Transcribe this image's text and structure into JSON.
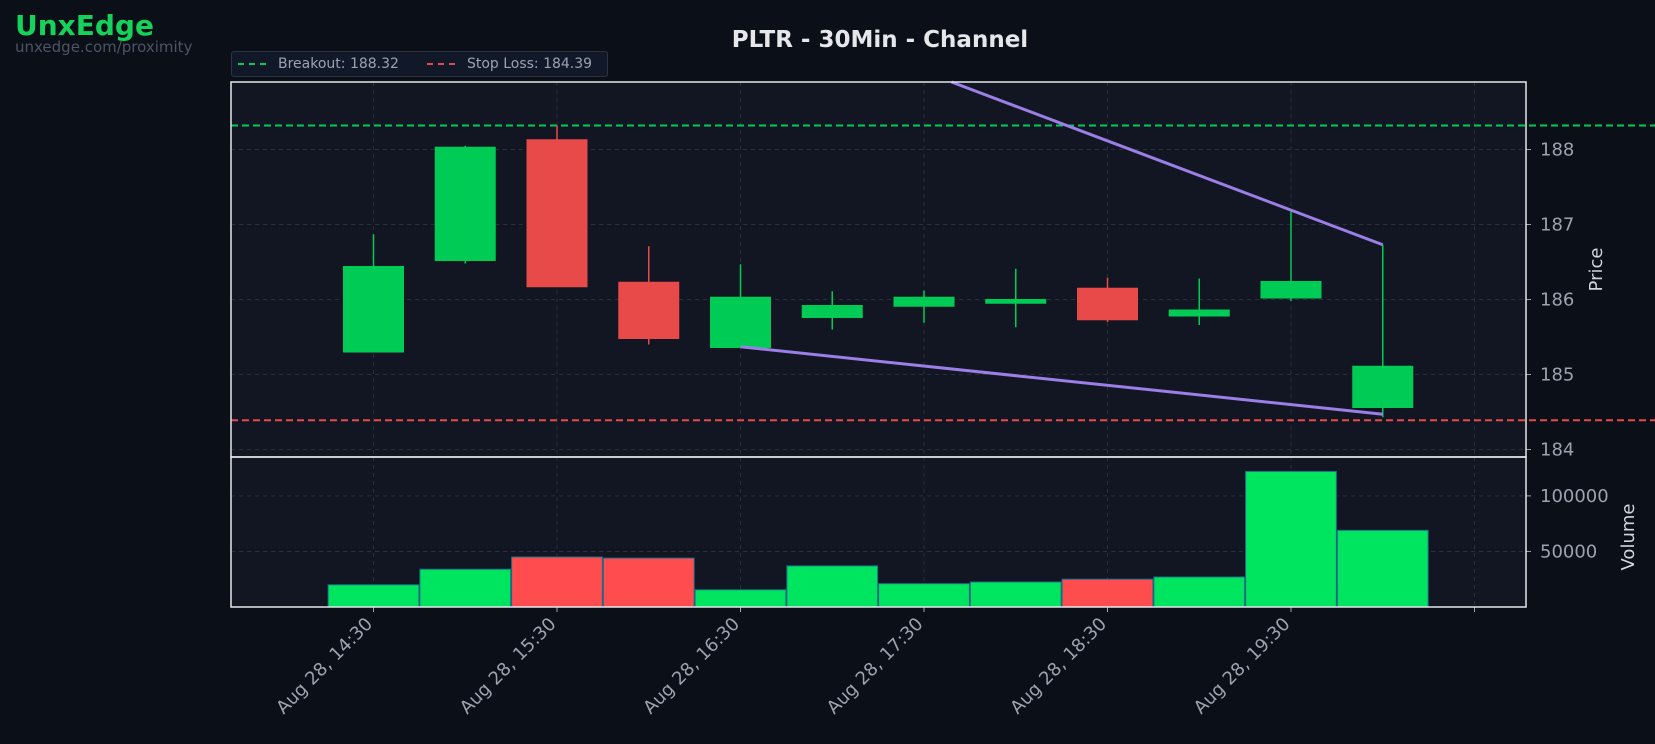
{
  "brand": {
    "name": "UnxEdge",
    "url": "unxedge.com/proximity"
  },
  "title": "PLTR - 30Min - Channel",
  "colors": {
    "background": "#0b0f17",
    "panel": "#121622",
    "up": "#00cc55",
    "up_volume": "#00e55f",
    "down": "#e84a4a",
    "down_volume": "#ff4d4f",
    "channel": "#9b7fe6",
    "breakout": "#00cc55",
    "stop_loss": "#e84a4a",
    "grid": "#2a2f3b",
    "axis_text": "#9ca3af",
    "frame": "#e5e7eb"
  },
  "legend": [
    {
      "label": "Breakout: 188.32",
      "color": "#00cc55",
      "level": 188.32
    },
    {
      "label": "Stop Loss: 184.39",
      "color": "#e84a4a",
      "level": 184.39
    }
  ],
  "chart_data": {
    "type": "candlestick",
    "title": "PLTR - 30Min - Channel",
    "interval": "30Min",
    "ylabel": "Price",
    "volume_label": "Volume",
    "price_ylim": [
      183.9,
      188.9
    ],
    "price_yticks": [
      184,
      185,
      186,
      187,
      188
    ],
    "volume_yticks": [
      50000,
      100000
    ],
    "volume_ylim": [
      0,
      135000
    ],
    "xtick_labels": [
      "Aug 28, 14:30",
      "Aug 28, 15:30",
      "Aug 28, 16:30",
      "Aug 28, 17:30",
      "Aug 28, 18:30",
      "Aug 28, 19:30"
    ],
    "grid": true,
    "legend_placement": "top-left",
    "candles": [
      {
        "time": "Aug 28, 14:30",
        "open": 185.3,
        "high": 186.87,
        "low": 185.3,
        "close": 186.44,
        "volume": 20000
      },
      {
        "time": "Aug 28, 15:00",
        "open": 186.52,
        "high": 188.05,
        "low": 186.48,
        "close": 188.03,
        "volume": 34000
      },
      {
        "time": "Aug 28, 15:30",
        "open": 188.13,
        "high": 188.32,
        "low": 186.17,
        "close": 186.17,
        "volume": 45000
      },
      {
        "time": "Aug 28, 16:00",
        "open": 186.23,
        "high": 186.71,
        "low": 185.4,
        "close": 185.48,
        "volume": 44000
      },
      {
        "time": "Aug 28, 16:30",
        "open": 185.36,
        "high": 186.47,
        "low": 185.36,
        "close": 186.03,
        "volume": 15500
      },
      {
        "time": "Aug 28, 17:00",
        "open": 185.76,
        "high": 186.11,
        "low": 185.6,
        "close": 185.92,
        "volume": 37000
      },
      {
        "time": "Aug 28, 17:30",
        "open": 185.91,
        "high": 186.12,
        "low": 185.69,
        "close": 186.03,
        "volume": 21000
      },
      {
        "time": "Aug 28, 18:00",
        "open": 185.95,
        "high": 186.41,
        "low": 185.63,
        "close": 186.0,
        "volume": 22500
      },
      {
        "time": "Aug 28, 18:30",
        "open": 186.15,
        "high": 186.29,
        "low": 185.7,
        "close": 185.73,
        "volume": 25000
      },
      {
        "time": "Aug 28, 19:00",
        "open": 185.78,
        "high": 186.28,
        "low": 185.66,
        "close": 185.86,
        "volume": 27000
      },
      {
        "time": "Aug 28, 19:30",
        "open": 186.02,
        "high": 187.18,
        "low": 185.98,
        "close": 186.24,
        "volume": 122000
      },
      {
        "time": "Aug 28, 20:00",
        "open": 184.56,
        "high": 186.73,
        "low": 184.43,
        "close": 185.11,
        "volume": 69000
      }
    ],
    "channel": {
      "upper": [
        {
          "index": 6.3,
          "price": 188.9
        },
        {
          "index": 11,
          "price": 186.73
        }
      ],
      "lower": [
        {
          "index": 4,
          "price": 185.37
        },
        {
          "index": 11,
          "price": 184.47
        }
      ]
    },
    "levels": {
      "breakout": 188.32,
      "stop_loss": 184.39
    }
  }
}
